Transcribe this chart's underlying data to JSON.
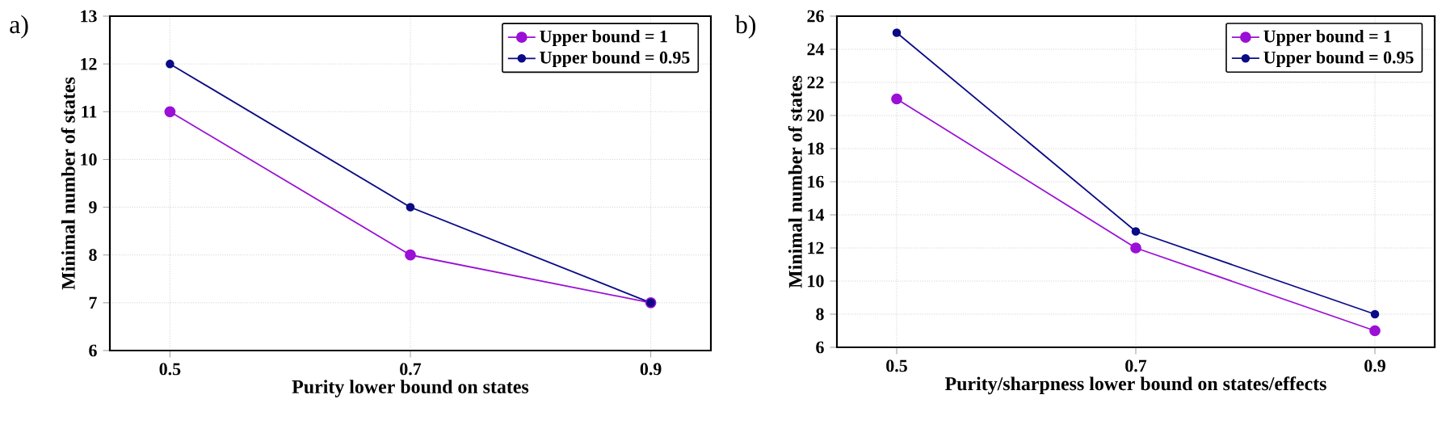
{
  "chart_data": [
    {
      "type": "line",
      "xlabel": "Purity lower bound on states",
      "ylabel": "Minimal number of states",
      "annotations": [
        "a)"
      ],
      "x": [
        0.5,
        0.7,
        0.9
      ],
      "xlim": [
        0.45,
        0.95
      ],
      "xticks": [
        0.5,
        0.7,
        0.9
      ],
      "ylim": [
        6,
        13
      ],
      "yticks": [
        6,
        7,
        8,
        9,
        10,
        11,
        12,
        13
      ],
      "grid": true,
      "legend": "top right",
      "marker": "circle",
      "line_style": "solid",
      "series": [
        {
          "name": "Upper bound = 1",
          "color": "#9b0fd6",
          "values": [
            11,
            8,
            7
          ]
        },
        {
          "name": "Upper bound = 0.95",
          "color": "#0b0b86",
          "values": [
            12,
            9,
            7
          ]
        }
      ]
    },
    {
      "type": "line",
      "xlabel": "Purity/sharpness lower bound on states/effects",
      "ylabel": "Minimal number of states",
      "annotations": [
        "b)"
      ],
      "x": [
        0.5,
        0.7,
        0.9
      ],
      "xlim": [
        0.45,
        0.95
      ],
      "xticks": [
        0.5,
        0.7,
        0.9
      ],
      "ylim": [
        6,
        26
      ],
      "yticks": [
        6,
        8,
        10,
        12,
        14,
        16,
        18,
        20,
        22,
        24,
        26
      ],
      "grid": true,
      "legend": "top right",
      "marker": "circle",
      "line_style": "solid",
      "series": [
        {
          "name": "Upper bound = 1",
          "color": "#9b0fd6",
          "values": [
            21,
            12,
            7
          ]
        },
        {
          "name": "Upper bound = 0.95",
          "color": "#0b0b86",
          "values": [
            25,
            13,
            8
          ]
        }
      ]
    }
  ]
}
